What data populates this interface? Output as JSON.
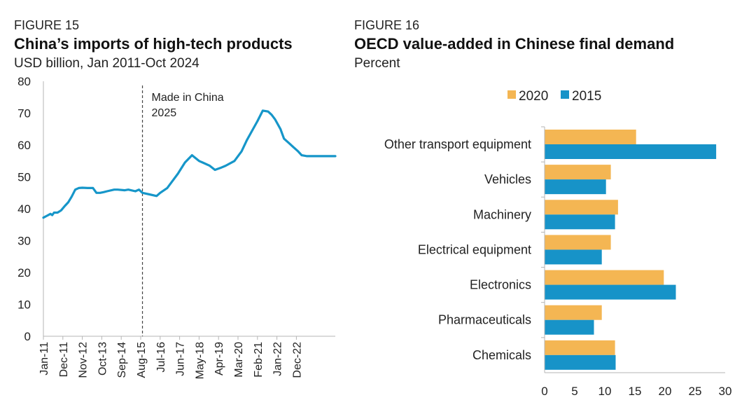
{
  "colors": {
    "line": "#1696c9",
    "series_2020": "#f4b653",
    "series_2015": "#1793c8",
    "axis": "#b5b5b5"
  },
  "chart_data": [
    {
      "type": "line",
      "figure_label": "FIGURE 15",
      "title": "China’s imports of high-tech products",
      "subtitle": "USD billion, Jan 2011-Oct 2024",
      "ylim": [
        0,
        80
      ],
      "yticks": [
        0,
        10,
        20,
        30,
        40,
        50,
        60,
        70,
        80
      ],
      "xlim": [
        0,
        165
      ],
      "xticks": [
        {
          "label": "Jan-11",
          "x": 0
        },
        {
          "label": "Dec-11",
          "x": 11
        },
        {
          "label": "Nov-12",
          "x": 22
        },
        {
          "label": "Oct-13",
          "x": 33
        },
        {
          "label": "Sep-14",
          "x": 44
        },
        {
          "label": "Aug-15",
          "x": 55
        },
        {
          "label": "Jul-16",
          "x": 66
        },
        {
          "label": "Jun-17",
          "x": 77
        },
        {
          "label": "May-18",
          "x": 88
        },
        {
          "label": "Apr-19",
          "x": 99
        },
        {
          "label": "Mar-20",
          "x": 110
        },
        {
          "label": "Feb-21",
          "x": 121
        },
        {
          "label": "Jan-22",
          "x": 132
        },
        {
          "label": "Dec-22",
          "x": 143
        }
      ],
      "annotation": {
        "text_lines": [
          "Made in China",
          "2025"
        ],
        "x": 56
      },
      "x": [
        0,
        2,
        4,
        5,
        6,
        8,
        10,
        12,
        14,
        16,
        18,
        20,
        22,
        25,
        28,
        30,
        32,
        34,
        36,
        40,
        42,
        46,
        48,
        52,
        54,
        56,
        60,
        64,
        66,
        70,
        72,
        76,
        80,
        84,
        88,
        90,
        94,
        97,
        100,
        103,
        108,
        112,
        115,
        118,
        121,
        124,
        127,
        129,
        131,
        134,
        136,
        139,
        141,
        144,
        146,
        149,
        150,
        151,
        152,
        154,
        156,
        158,
        160,
        162,
        164,
        165
      ],
      "values": [
        37.2,
        37.8,
        38.4,
        38.0,
        38.8,
        38.8,
        39.5,
        40.8,
        42.0,
        43.8,
        46.0,
        46.5,
        46.6,
        46.5,
        46.5,
        45.0,
        45.0,
        45.2,
        45.5,
        46.0,
        46.0,
        45.8,
        46.0,
        45.5,
        46.0,
        45.0,
        44.5,
        44.0,
        45.0,
        46.5,
        48.0,
        51.0,
        54.5,
        56.8,
        55.0,
        54.5,
        53.5,
        52.2,
        52.8,
        53.5,
        55.0,
        58.0,
        61.5,
        64.5,
        67.5,
        70.8,
        70.5,
        69.5,
        68.0,
        65.0,
        62.0,
        60.5,
        59.5,
        58.0,
        56.8,
        56.5,
        56.5,
        56.5,
        56.5,
        56.5,
        56.5,
        56.5,
        56.5,
        56.5,
        56.5,
        56.5
      ]
    },
    {
      "type": "bar",
      "orientation": "horizontal",
      "figure_label": "FIGURE 16",
      "title": "OECD value-added in Chinese final demand",
      "subtitle": "Percent",
      "categories": [
        "Other transport equipment",
        "Vehicles",
        "Machinery",
        "Electrical equipment",
        "Electronics",
        "Pharmaceuticals",
        "Chemicals"
      ],
      "series": [
        {
          "name": "2020",
          "values": [
            15.2,
            11.0,
            12.2,
            11.0,
            19.8,
            9.5,
            11.7
          ]
        },
        {
          "name": "2015",
          "values": [
            28.5,
            10.2,
            11.7,
            9.5,
            21.8,
            8.2,
            11.8
          ]
        }
      ],
      "xlim": [
        0,
        30
      ],
      "xticks": [
        0,
        5,
        10,
        15,
        20,
        25,
        30
      ],
      "legend": "top"
    }
  ]
}
